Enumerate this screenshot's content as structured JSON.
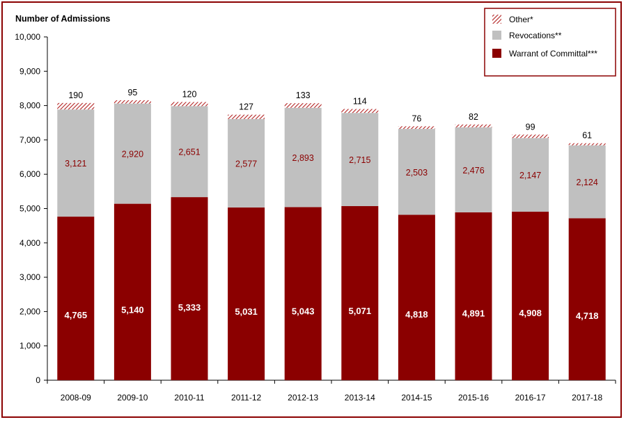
{
  "chart_data": {
    "type": "bar",
    "stacked": true,
    "ylabel": "Number of Admissions",
    "ylim": [
      0,
      10000
    ],
    "yticks": [
      0,
      1000,
      2000,
      3000,
      4000,
      5000,
      6000,
      7000,
      8000,
      9000,
      10000
    ],
    "ytick_labels": [
      "0",
      "1,000",
      "2,000",
      "3,000",
      "4,000",
      "5,000",
      "6,000",
      "7,000",
      "8,000",
      "9,000",
      "10,000"
    ],
    "categories": [
      "2008-09",
      "2009-10",
      "2010-11",
      "2011-12",
      "2012-13",
      "2013-14",
      "2014-15",
      "2015-16",
      "2016-17",
      "2017-18"
    ],
    "series": [
      {
        "name": "Warrant of Committal***",
        "values": [
          4765,
          5140,
          5333,
          5031,
          5043,
          5071,
          4818,
          4891,
          4908,
          4718
        ],
        "labels": [
          "4,765",
          "5,140",
          "5,333",
          "5,031",
          "5,043",
          "5,071",
          "4,818",
          "4,891",
          "4,908",
          "4,718"
        ],
        "color": "#8b0000"
      },
      {
        "name": "Revocations**",
        "values": [
          3121,
          2920,
          2651,
          2577,
          2893,
          2715,
          2503,
          2476,
          2147,
          2124
        ],
        "labels": [
          "3,121",
          "2,920",
          "2,651",
          "2,577",
          "2,893",
          "2,715",
          "2,503",
          "2,476",
          "2,147",
          "2,124"
        ],
        "color": "#c0c0c0"
      },
      {
        "name": "Other*",
        "values": [
          190,
          95,
          120,
          127,
          133,
          114,
          76,
          82,
          99,
          61
        ],
        "labels": [
          "190",
          "95",
          "120",
          "127",
          "133",
          "114",
          "76",
          "82",
          "99",
          "61"
        ],
        "color": "#b22222",
        "pattern": "hatched"
      }
    ],
    "legend_position": "top-right",
    "grid": false
  }
}
